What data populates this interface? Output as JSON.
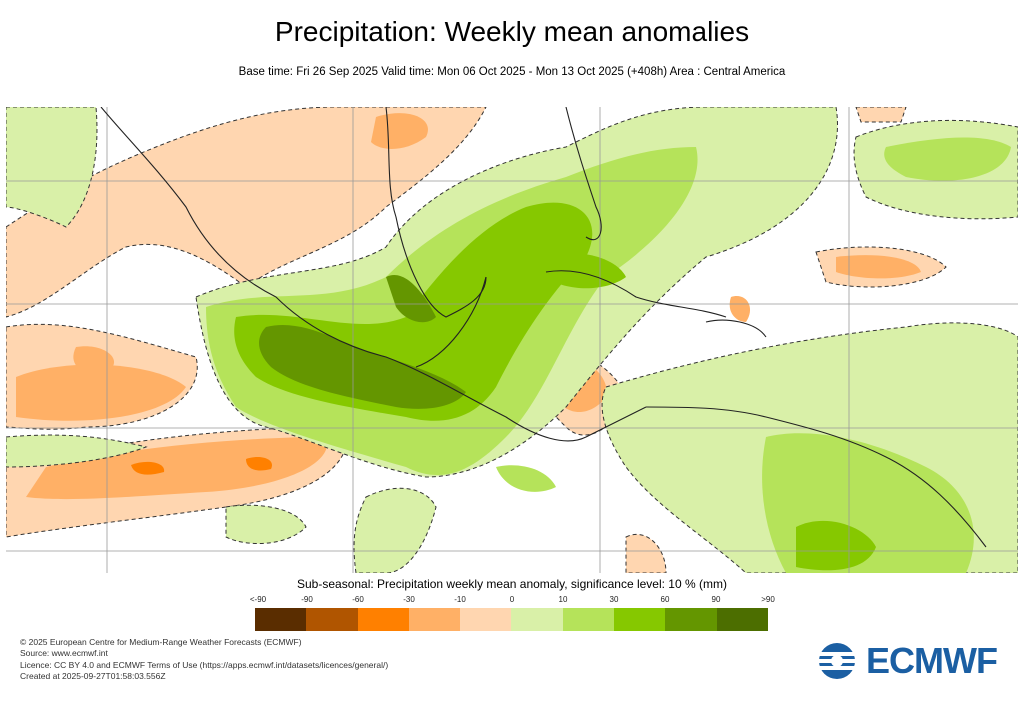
{
  "header": {
    "title": "Precipitation: Weekly mean anomalies",
    "subtitle": "Base time: Fri 26 Sep 2025 Valid time: Mon 06 Oct 2025 - Mon 13 Oct 2025 (+408h) Area : Central America"
  },
  "legend": {
    "title": "Sub-seasonal: Precipitation weekly mean anomaly, significance level: 10 % (mm)",
    "labels": [
      "<-90",
      "-90",
      "-60",
      "-30",
      "-10",
      "0",
      "10",
      "30",
      "60",
      "90",
      ">90"
    ],
    "colors": [
      "#5a2d00",
      "#b05500",
      "#ff8000",
      "#ffb066",
      "#ffd6b0",
      "#d9f0a8",
      "#b5e35a",
      "#86c800",
      "#649600",
      "#4c6e00"
    ]
  },
  "footer": {
    "copyright": "© 2025 European Centre for Medium-Range Weather Forecasts (ECMWF)",
    "source": "Source: www.ecmwf.int",
    "licence": "Licence: CC BY 4.0 and ECMWF Terms of Use (https://apps.ecmwf.int/datasets/licences/general/)",
    "created": "Created at 2025-09-27T01:58:03.556Z"
  },
  "logo": {
    "text": "ECMWF"
  }
}
